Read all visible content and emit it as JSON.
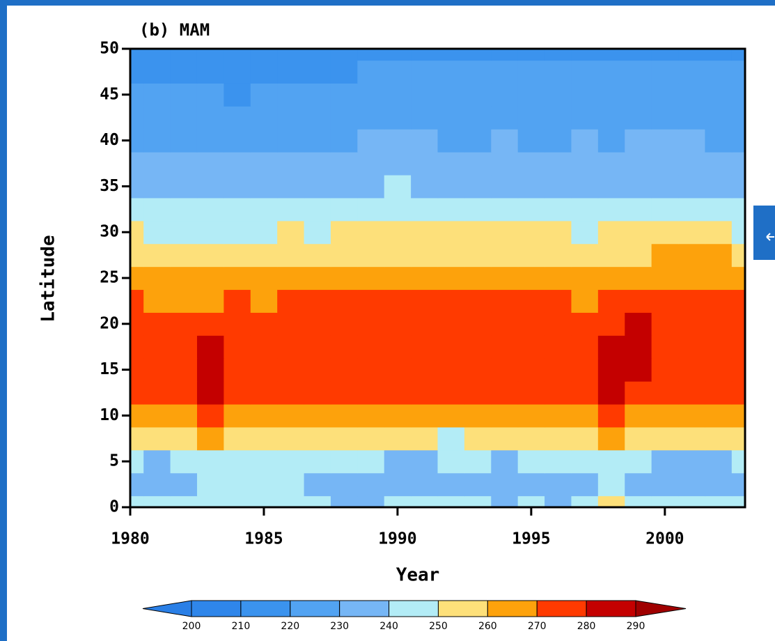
{
  "chart_data": {
    "type": "contourf",
    "title": "(b) MAM",
    "x_label": "Year",
    "y_label": "Latitude",
    "x": [
      1980,
      1981,
      1982,
      1983,
      1984,
      1985,
      1986,
      1987,
      1988,
      1989,
      1990,
      1991,
      1992,
      1993,
      1994,
      1995,
      1996,
      1997,
      1998,
      1999,
      2000,
      2001,
      2002,
      2003
    ],
    "y": [
      0,
      2.5,
      5,
      7.5,
      10,
      12.5,
      15,
      17.5,
      20,
      22.5,
      25,
      27.5,
      30,
      32.5,
      35,
      37.5,
      40,
      42.5,
      45,
      47.5,
      50
    ],
    "z": [
      [
        243,
        243,
        242,
        248,
        245,
        242,
        240,
        241,
        238,
        236,
        240,
        242,
        241,
        240,
        238,
        240,
        239,
        241,
        250,
        243,
        241,
        240,
        240,
        242
      ],
      [
        238,
        237,
        238,
        246,
        242,
        241,
        240,
        239,
        237,
        238,
        236,
        236,
        238,
        239,
        238,
        237,
        238,
        239,
        248,
        238,
        236,
        236,
        236,
        237
      ],
      [
        240,
        239,
        241,
        249,
        244,
        243,
        242,
        241,
        242,
        240,
        238,
        238,
        241,
        240,
        239,
        241,
        241,
        243,
        249,
        240,
        238,
        239,
        239,
        241
      ],
      [
        251,
        251,
        252,
        262,
        256,
        252,
        251,
        250,
        250,
        251,
        251,
        251,
        249,
        251,
        251,
        251,
        251,
        253,
        262,
        254,
        252,
        251,
        251,
        251
      ],
      [
        264,
        264,
        265,
        273,
        268,
        264,
        263,
        261,
        262,
        264,
        264,
        265,
        262,
        265,
        264,
        265,
        265,
        267,
        274,
        267,
        264,
        264,
        264,
        264
      ],
      [
        271,
        270,
        272,
        280,
        276,
        272,
        271,
        270,
        271,
        272,
        272,
        273,
        271,
        272,
        272,
        272,
        272,
        275,
        281,
        276,
        271,
        271,
        271,
        271
      ],
      [
        276,
        276,
        277,
        283,
        278,
        277,
        276,
        276,
        277,
        277,
        277,
        278,
        277,
        277,
        277,
        277,
        277,
        277,
        283,
        281,
        277,
        277,
        277,
        277
      ],
      [
        277,
        277,
        277,
        281,
        278,
        278,
        277,
        277,
        277,
        277,
        278,
        278,
        278,
        278,
        278,
        278,
        278,
        277,
        282,
        281,
        279,
        278,
        278,
        278
      ],
      [
        275,
        275,
        274,
        275,
        275,
        274,
        275,
        275,
        275,
        276,
        276,
        276,
        276,
        276,
        276,
        276,
        276,
        275,
        279,
        280,
        277,
        277,
        277,
        277
      ],
      [
        270,
        268,
        267,
        269,
        270,
        269,
        272,
        271,
        272,
        272,
        272,
        273,
        272,
        273,
        272,
        272,
        272,
        268,
        274,
        276,
        275,
        275,
        275,
        274
      ],
      [
        264,
        263,
        261,
        262,
        264,
        265,
        265,
        264,
        265,
        265,
        265,
        266,
        265,
        266,
        265,
        265,
        265,
        264,
        267,
        268,
        268,
        268,
        268,
        267
      ],
      [
        257,
        256,
        255,
        256,
        256,
        257,
        258,
        257,
        257,
        258,
        258,
        258,
        257,
        258,
        258,
        258,
        257,
        257,
        258,
        258,
        260,
        260,
        260,
        259
      ],
      [
        250,
        249,
        248,
        248,
        249,
        249,
        250,
        249,
        250,
        251,
        251,
        251,
        250,
        251,
        250,
        251,
        250,
        249,
        251,
        251,
        251,
        251,
        250,
        249
      ],
      [
        244,
        244,
        243,
        243,
        244,
        245,
        244,
        243,
        244,
        245,
        246,
        246,
        244,
        245,
        244,
        245,
        244,
        244,
        245,
        245,
        245,
        244,
        243,
        243
      ],
      [
        239,
        237,
        236,
        237,
        238,
        238,
        237,
        236,
        238,
        239,
        240,
        239,
        237,
        238,
        239,
        238,
        236,
        238,
        239,
        239,
        238,
        237,
        237,
        237
      ],
      [
        232,
        232,
        231,
        231,
        232,
        231,
        231,
        231,
        231,
        233,
        234,
        233,
        232,
        232,
        234,
        233,
        231,
        233,
        232,
        233,
        233,
        233,
        232,
        232
      ],
      [
        228,
        229,
        229,
        227,
        225,
        228,
        229,
        228,
        228,
        230,
        231,
        230,
        229,
        229,
        230,
        229,
        229,
        230,
        229,
        230,
        231,
        230,
        229,
        229
      ],
      [
        226,
        227,
        228,
        224,
        222,
        226,
        227,
        226,
        226,
        228,
        229,
        229,
        227,
        227,
        227,
        227,
        227,
        228,
        227,
        228,
        229,
        229,
        228,
        228
      ],
      [
        222,
        223,
        223,
        220,
        219,
        222,
        223,
        222,
        223,
        226,
        228,
        228,
        225,
        224,
        225,
        225,
        225,
        226,
        224,
        227,
        228,
        227,
        226,
        226
      ],
      [
        218,
        218,
        218,
        216,
        216,
        218,
        218,
        218,
        219,
        221,
        224,
        222,
        220,
        220,
        220,
        220,
        220,
        221,
        221,
        222,
        222,
        221,
        221,
        222
      ],
      [
        215,
        215,
        215,
        214,
        214,
        215,
        215,
        215,
        216,
        217,
        218,
        217,
        216,
        216,
        216,
        216,
        216,
        217,
        217,
        217,
        217,
        217,
        216,
        216
      ]
    ],
    "xlim": [
      1980,
      2003
    ],
    "ylim": [
      0,
      50
    ],
    "xticks": [
      1980,
      1985,
      1990,
      1995,
      2000
    ],
    "yticks": [
      0,
      5,
      10,
      15,
      20,
      25,
      30,
      35,
      40,
      45,
      50
    ],
    "levels": [
      200,
      210,
      220,
      230,
      240,
      250,
      260,
      270,
      280,
      290
    ],
    "colors": [
      "#2a7fe6",
      "#2f86ea",
      "#3b93ee",
      "#52a3f2",
      "#76b6f5",
      "#b3ecf6",
      "#fde07a",
      "#fda20c",
      "#ff3a00",
      "#c40000",
      "#a00000"
    ]
  }
}
